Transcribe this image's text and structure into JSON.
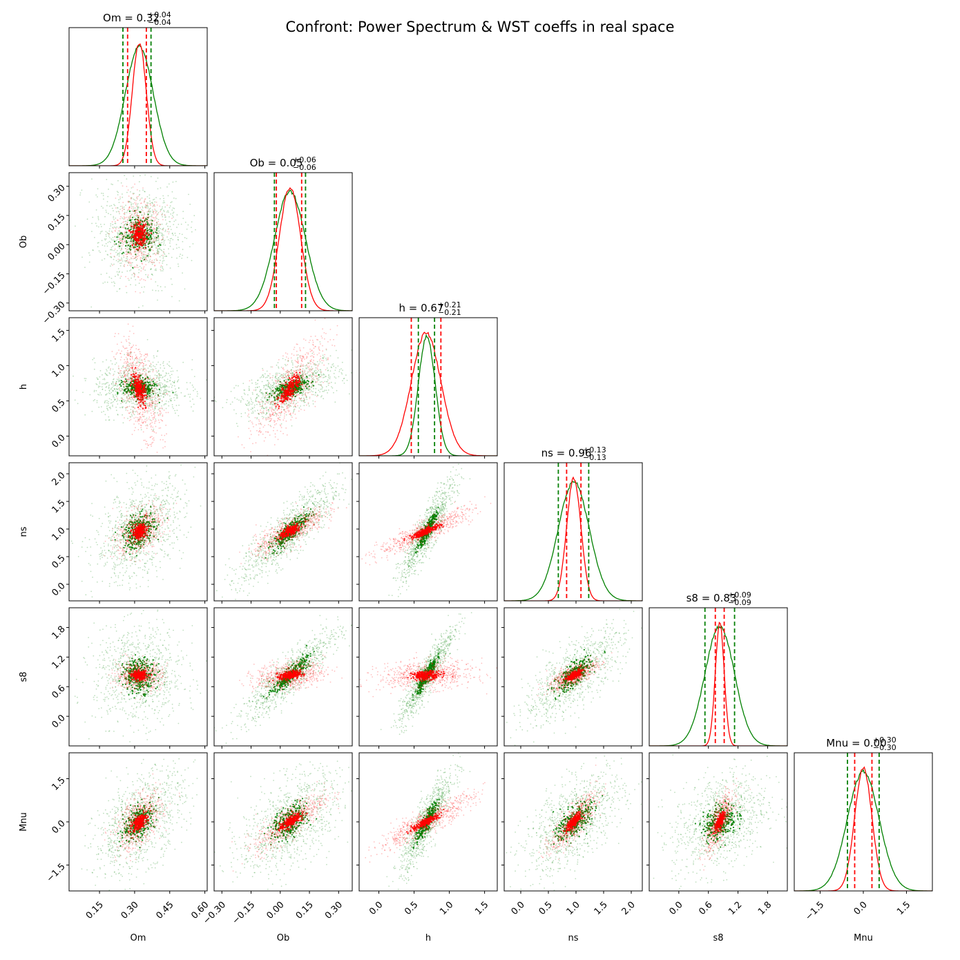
{
  "figure": {
    "title": "Confront: Power Spectrum & WST coeffs in real space"
  },
  "colors": {
    "series_a": "#008000",
    "series_b": "#ff0000",
    "axes": "#000000",
    "background": "#ffffff"
  },
  "chart_data": {
    "type": "corner",
    "params": [
      {
        "name": "Om",
        "label": "Om",
        "median": "0.32",
        "plus": "+0.04",
        "minus": "−0.04",
        "range": [
          0.02,
          0.61
        ],
        "ticks": [
          "0.15",
          "0.30",
          "0.45",
          "0.60"
        ],
        "tick_values": [
          0.15,
          0.3,
          0.45,
          0.6
        ],
        "y_ticks": [],
        "green_q": [
          0.25,
          0.37
        ],
        "red_q": [
          0.27,
          0.35
        ],
        "green_sd": 0.06,
        "red_sd": 0.03,
        "peak_green": 0.32,
        "peak_red": 0.32
      },
      {
        "name": "Ob",
        "label": "Ob",
        "median": "0.05",
        "plus": "+0.06",
        "minus": "−0.06",
        "range": [
          -0.34,
          0.37
        ],
        "ticks": [
          "−0.30",
          "−0.15",
          "0.00",
          "0.15",
          "0.30"
        ],
        "tick_values": [
          -0.3,
          -0.15,
          0.0,
          0.15,
          0.3
        ],
        "y_ticks": [
          "−0.30",
          "−0.15",
          "0.00",
          "0.15",
          "0.30"
        ],
        "green_q": [
          -0.03,
          0.13
        ],
        "red_q": [
          -0.02,
          0.11
        ],
        "green_sd": 0.08,
        "red_sd": 0.055,
        "peak_green": 0.05,
        "peak_red": 0.05
      },
      {
        "name": "h",
        "label": "h",
        "median": "0.67",
        "plus": "+0.21",
        "minus": "−0.21",
        "range": [
          -0.28,
          1.68
        ],
        "ticks": [
          "0.0",
          "0.5",
          "1.0",
          "1.5"
        ],
        "tick_values": [
          0.0,
          0.5,
          1.0,
          1.5
        ],
        "y_ticks": [
          "0.0",
          "0.5",
          "1.0",
          "1.5"
        ],
        "green_q": [
          0.56,
          0.79
        ],
        "red_q": [
          0.46,
          0.88
        ],
        "green_sd": 0.12,
        "red_sd": 0.21,
        "peak_green": 0.68,
        "peak_red": 0.67
      },
      {
        "name": "ns",
        "label": "ns",
        "median": "0.96",
        "plus": "+0.13",
        "minus": "−0.13",
        "range": [
          -0.3,
          2.2
        ],
        "ticks": [
          "0.0",
          "0.5",
          "1.0",
          "1.5",
          "2.0"
        ],
        "tick_values": [
          0.0,
          0.5,
          1.0,
          1.5,
          2.0
        ],
        "y_ticks": [
          "0.0",
          "0.5",
          "1.0",
          "1.5",
          "2.0"
        ],
        "green_q": [
          0.68,
          1.23
        ],
        "red_q": [
          0.83,
          1.09
        ],
        "green_sd": 0.28,
        "red_sd": 0.13,
        "peak_green": 0.96,
        "peak_red": 0.96
      },
      {
        "name": "s8",
        "label": "s8",
        "median": "0.83",
        "plus": "+0.09",
        "minus": "−0.09",
        "range": [
          -0.6,
          2.2
        ],
        "ticks": [
          "0.0",
          "0.6",
          "1.2",
          "1.8"
        ],
        "tick_values": [
          0.0,
          0.6,
          1.2,
          1.8
        ],
        "y_ticks": [
          "0.0",
          "0.6",
          "1.2",
          "1.8"
        ],
        "green_q": [
          0.53,
          1.13
        ],
        "red_q": [
          0.74,
          0.92
        ],
        "green_sd": 0.3,
        "red_sd": 0.09,
        "peak_green": 0.83,
        "peak_red": 0.83
      },
      {
        "name": "Mnu",
        "label": "Mnu",
        "median": "0.00",
        "plus": "+0.30",
        "minus": "−0.30",
        "range": [
          -2.4,
          2.4
        ],
        "ticks": [
          "−1.5",
          "0.0",
          "1.5"
        ],
        "tick_values": [
          -1.5,
          0.0,
          1.5
        ],
        "y_ticks": [
          "−1.5",
          "0.0",
          "1.5"
        ],
        "green_q": [
          -0.55,
          0.55
        ],
        "red_q": [
          -0.3,
          0.3
        ],
        "green_sd": 0.55,
        "red_sd": 0.3,
        "peak_green": 0.0,
        "peak_red": 0.0
      }
    ],
    "correlations_green": {
      "1-0": 0.0,
      "2-0": 0.0,
      "2-1": 0.55,
      "3-0": 0.4,
      "3-1": 0.85,
      "3-2": 0.9,
      "4-0": 0.0,
      "4-1": 0.9,
      "4-2": 0.92,
      "4-3": 0.75,
      "5-0": 0.5,
      "5-1": 0.5,
      "5-2": 0.88,
      "5-3": 0.6,
      "5-4": 0.35
    },
    "correlations_red": {
      "1-0": 0.0,
      "2-0": -0.55,
      "2-1": 0.75,
      "3-0": 0.4,
      "3-1": 0.8,
      "3-2": 0.9,
      "4-0": 0.0,
      "4-1": 0.3,
      "4-2": 0.15,
      "4-3": 0.7,
      "5-0": 0.5,
      "5-1": 0.8,
      "5-2": 0.9,
      "5-3": 0.8,
      "5-4": 0.7
    },
    "series": [
      {
        "color": "green"
      },
      {
        "color": "red"
      }
    ]
  }
}
